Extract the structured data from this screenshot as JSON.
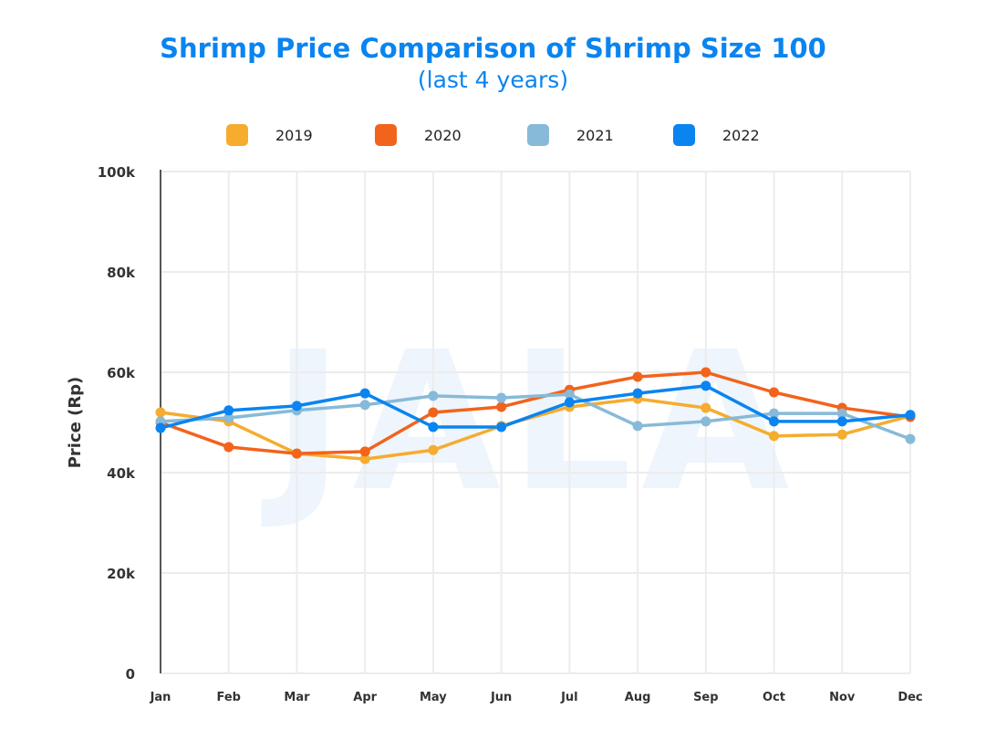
{
  "chart_data": {
    "type": "line",
    "title": "Shrimp Price Comparison of Shrimp Size 100",
    "subtitle": "(last 4 years)",
    "xlabel": "",
    "ylabel": "Price (Rp)",
    "ylim": [
      0,
      100000
    ],
    "yticks": [
      0,
      20000,
      40000,
      60000,
      80000,
      100000
    ],
    "ytick_labels": [
      "0",
      "20k",
      "40k",
      "60k",
      "80k",
      "100k"
    ],
    "categories": [
      "Jan",
      "Feb",
      "Mar",
      "Apr",
      "May",
      "Jun",
      "Jul",
      "Aug",
      "Sep",
      "Oct",
      "Nov",
      "Dec"
    ],
    "grid": true,
    "legend_position": "top",
    "watermark": "JALA",
    "series": [
      {
        "name": "2019",
        "color": "#f5ac2f",
        "values": [
          52000,
          50200,
          43800,
          42700,
          44500,
          49300,
          53100,
          54700,
          52900,
          47300,
          47600,
          51300
        ]
      },
      {
        "name": "2020",
        "color": "#f2631c",
        "values": [
          50000,
          45100,
          43800,
          44200,
          52000,
          53100,
          56500,
          59100,
          60000,
          56000,
          52900,
          51100
        ]
      },
      {
        "name": "2021",
        "color": "#87bad8",
        "values": [
          50200,
          50900,
          52400,
          53500,
          55300,
          54900,
          55600,
          49300,
          50200,
          51800,
          51800,
          46700
        ]
      },
      {
        "name": "2022",
        "color": "#0a84f0",
        "values": [
          48900,
          52400,
          53300,
          55800,
          49100,
          49100,
          54000,
          55800,
          57300,
          50200,
          50200,
          51500
        ]
      }
    ]
  }
}
